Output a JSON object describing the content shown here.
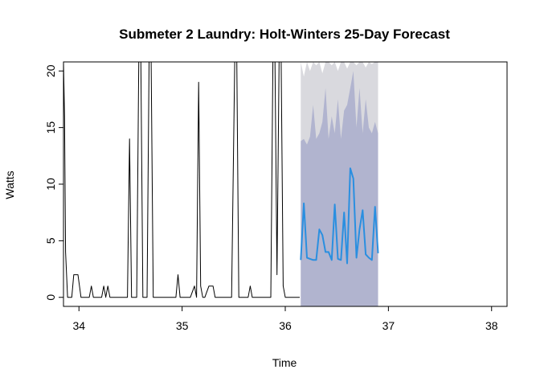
{
  "chart_data": {
    "type": "line",
    "title": "Submeter 2 Laundry: Holt-Winters 25-Day Forecast",
    "xlabel": "Time",
    "ylabel": "Watts",
    "xlim": [
      33.85,
      38.15
    ],
    "ylim": [
      -0.8,
      20.8
    ],
    "x_ticks": [
      34,
      35,
      36,
      37,
      38
    ],
    "y_ticks": [
      0,
      5,
      10,
      15,
      20
    ],
    "grid": false,
    "legend": "none",
    "colors": {
      "observed": "#000000",
      "forecast": "#2a8fe0",
      "band_95": "#d9d9de",
      "band_80": "#b1b4cf"
    },
    "series": [
      {
        "role": "observed",
        "x": [
          33.85,
          33.86,
          33.87,
          33.89,
          33.9,
          33.93,
          33.95,
          33.97,
          33.99,
          34.02,
          34.06,
          34.1,
          34.12,
          34.14,
          34.18,
          34.22,
          34.24,
          34.26,
          34.28,
          34.3,
          34.32,
          34.36,
          34.4,
          34.44,
          34.47,
          34.49,
          34.51,
          34.53,
          34.56,
          34.58,
          34.6,
          34.62,
          34.64,
          34.66,
          34.68,
          34.7,
          34.72,
          34.74,
          34.76,
          34.8,
          34.9,
          34.94,
          34.96,
          34.98,
          35.02,
          35.08,
          35.12,
          35.14,
          35.16,
          35.18,
          35.2,
          35.22,
          35.26,
          35.3,
          35.32,
          35.34,
          35.38,
          35.44,
          35.48,
          35.51,
          35.53,
          35.55,
          35.6,
          35.64,
          35.66,
          35.68,
          35.7,
          35.74,
          35.8,
          35.84,
          35.86,
          35.88,
          35.9,
          35.92,
          35.94,
          35.96,
          35.98,
          36.0,
          36.02,
          36.04,
          36.06,
          36.1,
          36.14
        ],
        "y": [
          20.8,
          16.0,
          4.0,
          0,
          0,
          0,
          2.0,
          2.0,
          2.0,
          0,
          0,
          0,
          1.0,
          0,
          0,
          0,
          1.0,
          0,
          1.0,
          0,
          0,
          0,
          0,
          0,
          0,
          14.0,
          0,
          0,
          0,
          20.8,
          20.8,
          0,
          0,
          0,
          20.8,
          20.8,
          0,
          0,
          0,
          0,
          0,
          0,
          2.0,
          0,
          0,
          0,
          1.0,
          0,
          19.0,
          1.0,
          0,
          0,
          1.0,
          1.0,
          0,
          0,
          0,
          0,
          0,
          20.8,
          20.8,
          0,
          0,
          0,
          1.0,
          0,
          0,
          0,
          0,
          0,
          0,
          20.8,
          20.8,
          2.0,
          20.8,
          20.8,
          1.0,
          0,
          0,
          0,
          0,
          0,
          0
        ]
      },
      {
        "role": "forecast",
        "x": [
          36.15,
          36.18,
          36.21,
          36.24,
          36.27,
          36.3,
          36.33,
          36.36,
          36.39,
          36.42,
          36.45,
          36.48,
          36.51,
          36.54,
          36.57,
          36.6,
          36.63,
          36.66,
          36.69,
          36.72,
          36.75,
          36.78,
          36.81,
          36.84,
          36.87,
          36.9
        ],
        "y": [
          3.3,
          8.3,
          3.5,
          3.4,
          3.3,
          3.3,
          6.0,
          5.5,
          4.0,
          4.0,
          3.3,
          8.2,
          3.4,
          3.3,
          7.5,
          3.0,
          11.4,
          10.5,
          3.5,
          6.0,
          7.7,
          3.8,
          3.5,
          3.3,
          8.0,
          3.9
        ]
      }
    ],
    "band_x": [
      36.15,
      36.18,
      36.21,
      36.24,
      36.27,
      36.3,
      36.33,
      36.36,
      36.39,
      36.42,
      36.45,
      36.48,
      36.51,
      36.54,
      36.57,
      36.6,
      36.63,
      36.66,
      36.69,
      36.72,
      36.75,
      36.78,
      36.81,
      36.84,
      36.87,
      36.9
    ],
    "band_95_upper": [
      20.8,
      19.5,
      20.8,
      20.0,
      20.8,
      20.5,
      20.8,
      19.8,
      20.8,
      20.8,
      20.5,
      20.8,
      20.0,
      20.8,
      20.8,
      20.2,
      20.8,
      20.8,
      20.5,
      20.8,
      20.8,
      20.3,
      20.8,
      20.6,
      20.8,
      20.8
    ],
    "band_80_upper": [
      13.8,
      14.0,
      13.5,
      14.2,
      17.0,
      14.0,
      14.5,
      15.5,
      18.5,
      14.0,
      16.0,
      14.5,
      17.5,
      14.0,
      16.5,
      17.0,
      18.5,
      20.0,
      15.0,
      18.5,
      14.5,
      17.5,
      15.0,
      14.5,
      15.5,
      14.5
    ],
    "band_80_lower": [
      -0.8,
      -0.8,
      -0.8,
      -0.8,
      -0.8,
      -0.8,
      -0.8,
      -0.8,
      -0.8,
      -0.8,
      -0.8,
      -0.8,
      -0.8,
      -0.8,
      -0.8,
      -0.8,
      -0.8,
      -0.8,
      -0.8,
      -0.8,
      -0.8,
      -0.8,
      -0.8,
      -0.8,
      -0.8,
      -0.8
    ],
    "band_95_lower": [
      -0.8,
      -0.8,
      -0.8,
      -0.8,
      -0.8,
      -0.8,
      -0.8,
      -0.8,
      -0.8,
      -0.8,
      -0.8,
      -0.8,
      -0.8,
      -0.8,
      -0.8,
      -0.8,
      -0.8,
      -0.8,
      -0.8,
      -0.8,
      -0.8,
      -0.8,
      -0.8,
      -0.8,
      -0.8,
      -0.8
    ]
  }
}
